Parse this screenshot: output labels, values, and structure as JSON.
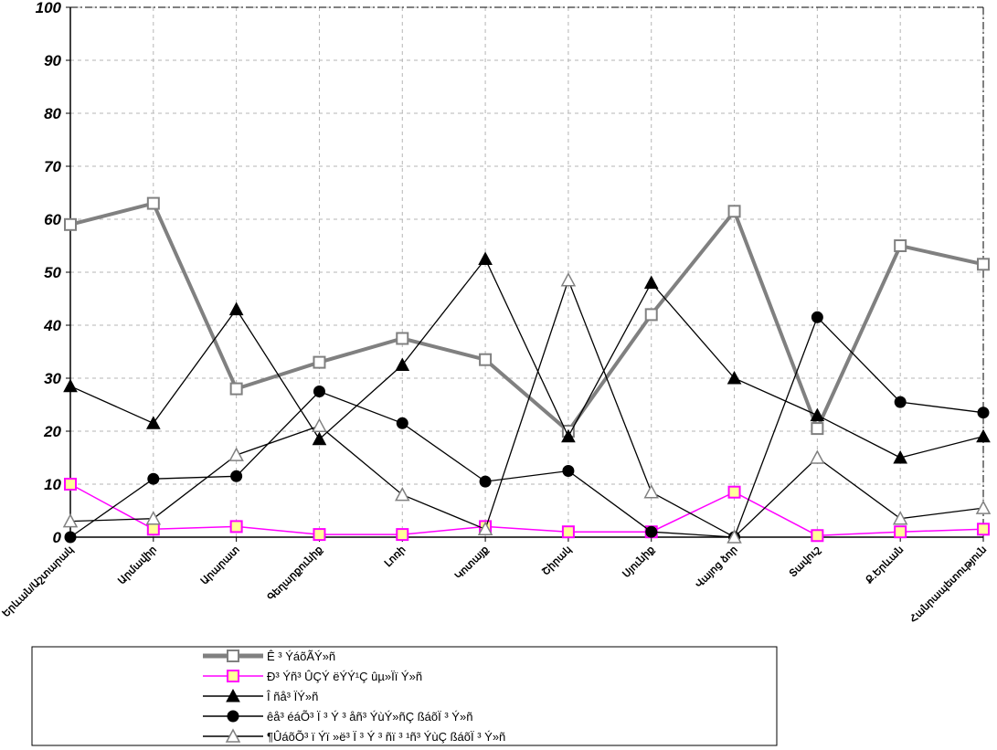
{
  "chart_data": {
    "type": "line",
    "title": "",
    "xlabel": "",
    "ylabel": "",
    "ylim": [
      0,
      100
    ],
    "yticks": [
      0,
      10,
      20,
      30,
      40,
      50,
      60,
      70,
      80,
      90,
      100
    ],
    "grid": true,
    "legend_position": "bottom-left",
    "categories": [
      "Երևան/Աշտարակ",
      "Արմավիր",
      "Արարատ",
      "Գեղարքունիք",
      "Լոռի",
      "Կոտայք",
      "Շիրակ",
      "Սյունիք",
      "Վայոց ձոր",
      "Տավուշ",
      "Ք.Երևան",
      "Հանրապետություն"
    ],
    "series": [
      {
        "name": "Ê ³ ÝáõÃÝ»ñ",
        "color": "#808080",
        "marker": "square-open",
        "values": [
          59,
          63,
          28,
          33,
          37.5,
          33.5,
          20,
          42,
          61.5,
          20.5,
          55,
          51.5
        ]
      },
      {
        "name": "Ð³ Ýñ³ ÛÇÝ ëÝÝ¹Ç ûµ»Ïï Ý»ñ",
        "color": "#ff00ff",
        "marker": "square-yellow",
        "values": [
          10,
          1.5,
          2,
          0.5,
          0.5,
          2,
          1,
          1,
          8.5,
          0.3,
          1,
          1.5
        ]
      },
      {
        "name": "Î ñå³ ÏÝ»ñ",
        "color": "#000000",
        "marker": "triangle-filled",
        "values": [
          28.5,
          21.5,
          43,
          18.5,
          32.5,
          52.5,
          19,
          48,
          30,
          23,
          15,
          19
        ]
      },
      {
        "name": "êå³ éáÕ³ Ï ³ Ý ³ åñ³ ÝùÝ»ñÇ ßáõÏ ³ Ý»ñ",
        "color": "#000000",
        "marker": "circle-filled",
        "values": [
          0,
          11,
          11.5,
          27.5,
          21.5,
          10.5,
          12.5,
          1,
          0,
          41.5,
          25.5,
          23.5
        ]
      },
      {
        "name": "¶ÛáõÕ³ ï Ýï »ë³ Ï ³ Ý ³ ñï ³ ¹ñ³ ÝùÇ ßáõÏ ³ Ý»ñ",
        "color": "#000000",
        "marker": "triangle-open",
        "values": [
          3,
          3.5,
          15.5,
          21,
          8,
          1.5,
          48.5,
          8.5,
          0,
          15,
          3.5,
          5.5
        ]
      }
    ]
  }
}
